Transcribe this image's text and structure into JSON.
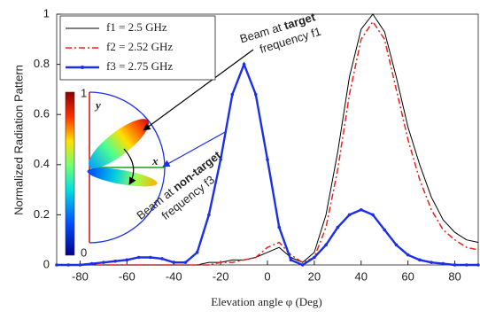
{
  "chart_data": {
    "type": "line",
    "xlabel": "Elevation angle φ (Deg)",
    "ylabel": "Normalized Radiation Pattern",
    "x": [
      -90,
      -85,
      -80,
      -75,
      -70,
      -65,
      -60,
      -55,
      -50,
      -45,
      -40,
      -35,
      -30,
      -25,
      -20,
      -15,
      -10,
      -5,
      0,
      5,
      10,
      15,
      20,
      25,
      30,
      35,
      40,
      45,
      50,
      55,
      60,
      65,
      70,
      75,
      80,
      85,
      90
    ],
    "series": [
      {
        "name": "f1 = 2.5 GHz",
        "color": "#000000",
        "style": "solid",
        "values": [
          0,
          0,
          0,
          0,
          0,
          0,
          0,
          0,
          0,
          0,
          0,
          0,
          0,
          0.01,
          0.01,
          0.02,
          0.02,
          0.03,
          0.05,
          0.07,
          0.03,
          0.01,
          0.05,
          0.2,
          0.45,
          0.75,
          0.94,
          1.0,
          0.93,
          0.75,
          0.55,
          0.4,
          0.27,
          0.18,
          0.13,
          0.1,
          0.09
        ]
      },
      {
        "name": "f2 = 2.52 GHz",
        "color": "#e8221a",
        "style": "dashdot",
        "values": [
          0,
          0,
          0,
          0,
          0,
          0,
          0,
          0,
          0,
          0,
          0,
          0,
          0,
          0,
          0.01,
          0.01,
          0.02,
          0.03,
          0.07,
          0.09,
          0.04,
          0.01,
          0.03,
          0.15,
          0.38,
          0.68,
          0.9,
          0.97,
          0.9,
          0.7,
          0.5,
          0.34,
          0.22,
          0.14,
          0.1,
          0.07,
          0.06
        ]
      },
      {
        "name": "f3 = 2.75 GHz",
        "color": "#1c2fe8",
        "style": "marker",
        "values": [
          0,
          0,
          0,
          0.005,
          0.01,
          0.015,
          0.02,
          0.03,
          0.03,
          0.025,
          0.01,
          0.01,
          0.05,
          0.2,
          0.42,
          0.68,
          0.8,
          0.68,
          0.42,
          0.15,
          0.02,
          0,
          0.03,
          0.08,
          0.15,
          0.2,
          0.22,
          0.2,
          0.14,
          0.08,
          0.04,
          0.02,
          0.01,
          0.005,
          0,
          0,
          0
        ]
      }
    ],
    "xlim": [
      -90,
      90
    ],
    "xticks": [
      -80,
      -60,
      -40,
      -20,
      0,
      20,
      40,
      60,
      80
    ],
    "ylim": [
      0,
      1
    ],
    "yticks": [
      0,
      0.2,
      0.4,
      0.6,
      0.8,
      1
    ],
    "legend": "upper-left",
    "annotations": [
      "Beam at",
      "target",
      "frequency f1",
      "Beam at",
      "non-target",
      "frequency f3",
      "x",
      "y"
    ],
    "colorbar_ticks": [
      0,
      1
    ]
  }
}
